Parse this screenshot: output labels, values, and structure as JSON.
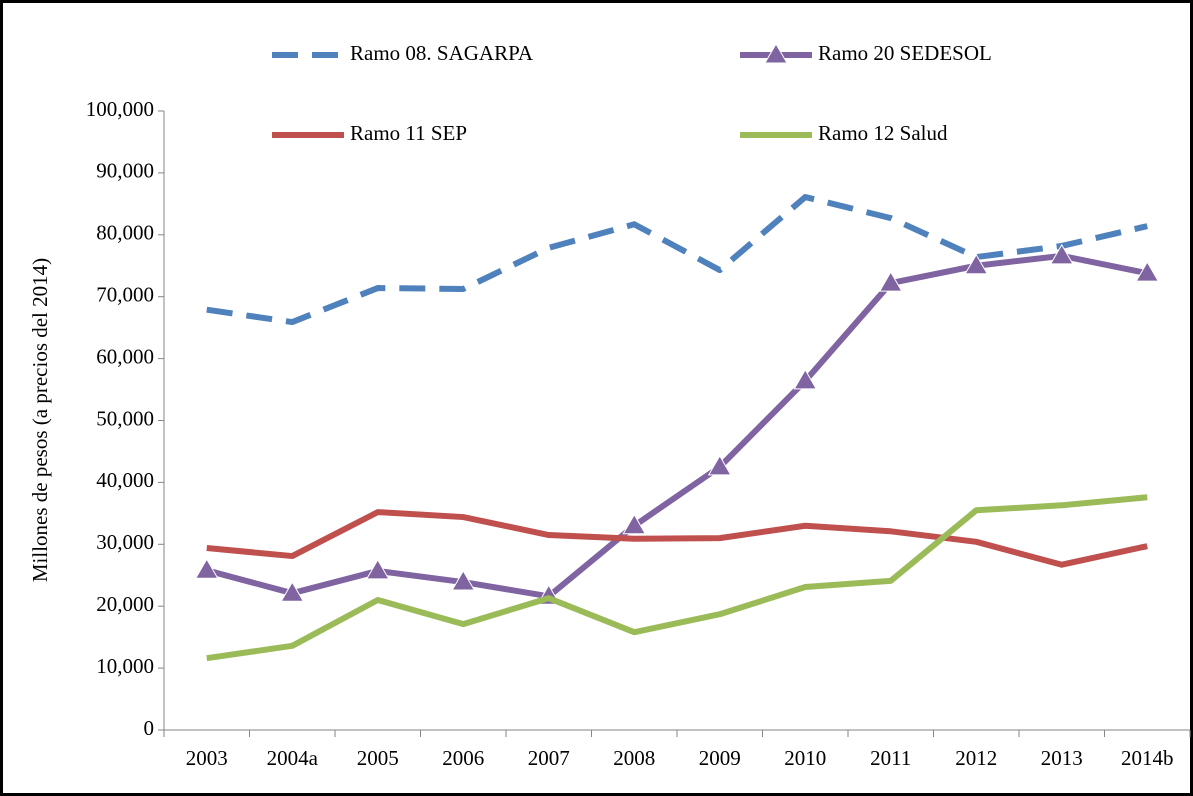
{
  "chart_data": {
    "type": "line",
    "y_label": "Millones de pesos (a precios del 2014)",
    "categories": [
      "2003",
      "2004a",
      "2005",
      "2006",
      "2007",
      "2008",
      "2009",
      "2010",
      "2011",
      "2012",
      "2013",
      "2014b"
    ],
    "series": [
      {
        "name": "Ramo 08. SAGARPA",
        "color": "#4f81bd",
        "dash": true,
        "values": [
          67900,
          65900,
          71400,
          71250,
          77900,
          81700,
          74300,
          86100,
          82700,
          76400,
          78200,
          81400
        ]
      },
      {
        "name": "Ramo 20 SEDESOL",
        "color": "#8064a2",
        "marker": "triangle",
        "values": [
          25800,
          22100,
          25700,
          23900,
          21600,
          33000,
          42500,
          56400,
          72200,
          75000,
          76600,
          73800
        ]
      },
      {
        "name": "Ramo 11 SEP",
        "color": "#c0504d",
        "values": [
          29400,
          28100,
          35200,
          34400,
          31500,
          30900,
          31000,
          33000,
          32100,
          30400,
          26700,
          29700
        ]
      },
      {
        "name": "Ramo 12 Salud",
        "color": "#9bbb59",
        "values": [
          11600,
          13600,
          21000,
          17100,
          21300,
          15800,
          18700,
          23100,
          24100,
          35500,
          36300,
          37600
        ]
      }
    ],
    "ylim": [
      0,
      100000
    ],
    "yticks": [
      0,
      {
        "value": 10000,
        "label": "10,000"
      },
      {
        "value": 20000,
        "label": "20,000"
      },
      {
        "value": 30000,
        "label": "30,000"
      },
      {
        "value": 40000,
        "label": "40,000"
      },
      {
        "value": 50000,
        "label": "50,000"
      },
      {
        "value": 60000,
        "label": "60,000"
      },
      {
        "value": 70000,
        "label": "70,000"
      },
      {
        "value": 80000,
        "label": "80,000"
      },
      {
        "value": 90000,
        "label": "90,000"
      },
      {
        "value": 100000,
        "label": "100,000"
      }
    ],
    "grid": false,
    "legend": "top"
  }
}
